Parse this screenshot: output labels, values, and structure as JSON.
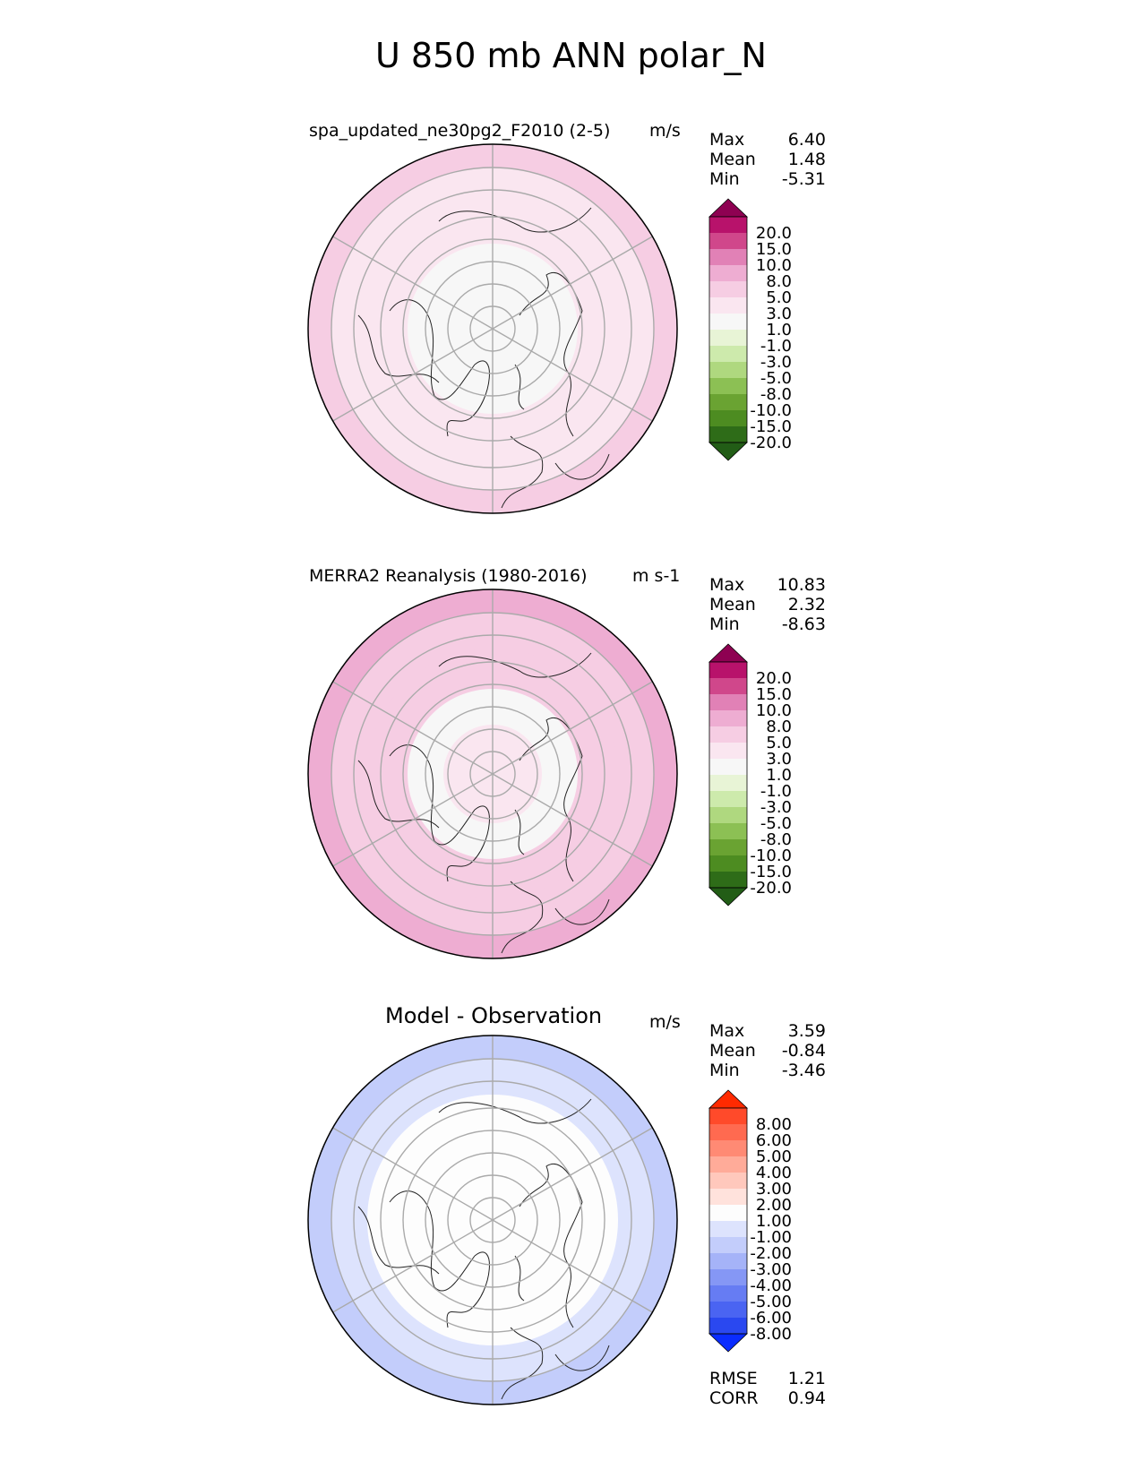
{
  "title": "U 850 mb ANN polar_N",
  "panels": [
    {
      "title": "spa_updated_ne30pg2_F2010 (2-5)",
      "units": "m/s",
      "stats": [
        {
          "label": "Max",
          "value": "6.40"
        },
        {
          "label": "Mean",
          "value": "1.48"
        },
        {
          "label": "Min",
          "value": "-5.31"
        }
      ],
      "colorbar": {
        "labels": [
          "20.0",
          "15.0",
          "10.0",
          "8.0",
          "5.0",
          "3.0",
          "1.0",
          "-1.0",
          "-3.0",
          "-5.0",
          "-8.0",
          "-10.0",
          "-15.0",
          "-20.0"
        ],
        "colors": [
          "#8e0152",
          "#b8126b",
          "#d0478b",
          "#e181b6",
          "#eeadd2",
          "#f6cde3",
          "#fae6f0",
          "#f7f7f7",
          "#e8f4d6",
          "#cdeaac",
          "#afd87f",
          "#8cc054",
          "#6aa332",
          "#4d8c21",
          "#2e6c18",
          "#225d16"
        ]
      },
      "regions": [
        {
          "ring": 0,
          "color": "#f7f7f7"
        },
        {
          "ring": 1,
          "color": "#f7f7f7"
        },
        {
          "ring": 2,
          "color": "#fae6f0"
        },
        {
          "ring": 3,
          "color": "#fae6f0"
        },
        {
          "ring": 4,
          "color": "#f6cde3"
        }
      ]
    },
    {
      "title": "MERRA2 Reanalysis (1980-2016)",
      "units": "m s-1",
      "stats": [
        {
          "label": "Max",
          "value": "10.83"
        },
        {
          "label": "Mean",
          "value": "2.32"
        },
        {
          "label": "Min",
          "value": "-8.63"
        }
      ],
      "colorbar": {
        "labels": [
          "20.0",
          "15.0",
          "10.0",
          "8.0",
          "5.0",
          "3.0",
          "1.0",
          "-1.0",
          "-3.0",
          "-5.0",
          "-8.0",
          "-10.0",
          "-15.0",
          "-20.0"
        ],
        "colors": [
          "#8e0152",
          "#b8126b",
          "#d0478b",
          "#e181b6",
          "#eeadd2",
          "#f6cde3",
          "#fae6f0",
          "#f7f7f7",
          "#e8f4d6",
          "#cdeaac",
          "#afd87f",
          "#8cc054",
          "#6aa332",
          "#4d8c21",
          "#2e6c18",
          "#225d16"
        ]
      },
      "regions": [
        {
          "ring": 0,
          "color": "#fae6f0"
        },
        {
          "ring": 1,
          "color": "#f7f7f7"
        },
        {
          "ring": 2,
          "color": "#f6cde3"
        },
        {
          "ring": 3,
          "color": "#f6cde3"
        },
        {
          "ring": 4,
          "color": "#eeadd2"
        }
      ]
    },
    {
      "title": "Model - Observation",
      "units": "m/s",
      "stats": [
        {
          "label": "Max",
          "value": "3.59"
        },
        {
          "label": "Mean",
          "value": "-0.84"
        },
        {
          "label": "Min",
          "value": "-3.46"
        }
      ],
      "colorbar": {
        "labels": [
          "8.00",
          "6.00",
          "5.00",
          "4.00",
          "3.00",
          "2.00",
          "1.00",
          "-1.00",
          "-2.00",
          "-3.00",
          "-4.00",
          "-5.00",
          "-6.00",
          "-8.00"
        ],
        "colors": [
          "#ff2a00",
          "#ff4a2a",
          "#ff6a50",
          "#ff8a74",
          "#ffab99",
          "#ffc8bc",
          "#ffe2dc",
          "#fdfdfd",
          "#dde3fd",
          "#c3cdfb",
          "#a5b3f8",
          "#8597f5",
          "#667cf3",
          "#4a64f2",
          "#2a48f0",
          "#0a2cff"
        ]
      },
      "regions": [
        {
          "ring": 0,
          "color": "#fdfdfd"
        },
        {
          "ring": 1,
          "color": "#fdfdfd"
        },
        {
          "ring": 2,
          "color": "#fdfdfd"
        },
        {
          "ring": 3,
          "color": "#dde3fd"
        },
        {
          "ring": 4,
          "color": "#c3cdfb"
        }
      ]
    }
  ],
  "bottom_stats": [
    {
      "label": "RMSE",
      "value": "1.21"
    },
    {
      "label": "CORR",
      "value": "0.94"
    }
  ]
}
